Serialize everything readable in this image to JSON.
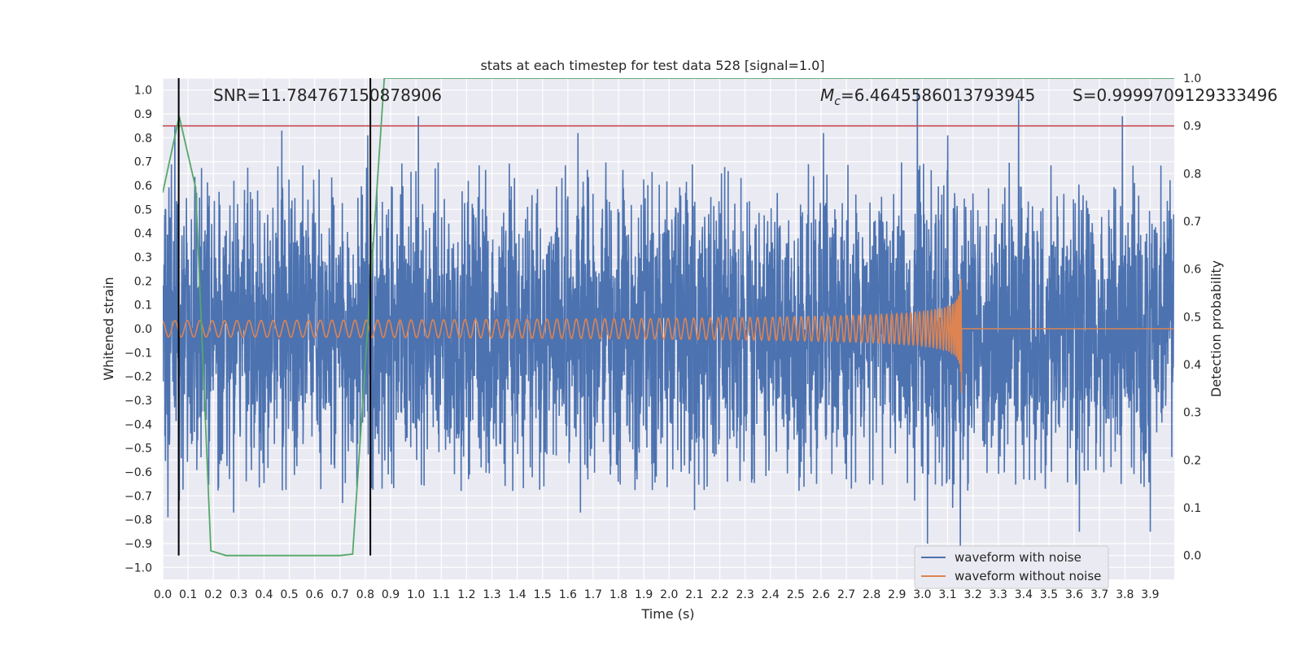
{
  "chart_data": {
    "type": "line",
    "title": "stats at each timestep for test data 528 [signal=1.0]",
    "xlabel": "Time (s)",
    "ylabel": "Whitened strain",
    "y2label": "Detection probability",
    "xlim": [
      0.0,
      3.995
    ],
    "ylim": [
      -1.05,
      1.05
    ],
    "y2lim": [
      -0.05,
      1.0
    ],
    "x_ticks": [
      "0.0",
      "0.1",
      "0.2",
      "0.3",
      "0.4",
      "0.5",
      "0.6",
      "0.7",
      "0.8",
      "0.9",
      "1.0",
      "1.1",
      "1.2",
      "1.3",
      "1.4",
      "1.5",
      "1.6",
      "1.7",
      "1.8",
      "1.9",
      "2.0",
      "2.1",
      "2.2",
      "2.3",
      "2.4",
      "2.5",
      "2.6",
      "2.7",
      "2.8",
      "2.9",
      "3.0",
      "3.1",
      "3.2",
      "3.3",
      "3.4",
      "3.5",
      "3.6",
      "3.7",
      "3.8",
      "3.9"
    ],
    "y_ticks": [
      "1.0",
      "0.9",
      "0.8",
      "0.7",
      "0.6",
      "0.5",
      "0.4",
      "0.3",
      "0.2",
      "0.1",
      "0.0",
      "−0.1",
      "−0.2",
      "−0.3",
      "−0.4",
      "−0.5",
      "−0.6",
      "−0.7",
      "−0.8",
      "−0.9",
      "−1.0"
    ],
    "y2_ticks": [
      "1.0",
      "0.9",
      "0.8",
      "0.7",
      "0.6",
      "0.5",
      "0.4",
      "0.3",
      "0.2",
      "0.1",
      "0.0"
    ],
    "grid": true,
    "legend_position": "lower-right",
    "annotations": {
      "snr": "SNR=11.784767150878906",
      "mc_symbol": "M",
      "mc_sub": "c",
      "mc_value": "=6.4645586013793945",
      "s": "S=0.9999709129333496"
    },
    "series": [
      {
        "name": "waveform with noise",
        "color": "#4c72b0",
        "noise_amplitude": 0.3,
        "peak_times": [
          0.048,
          0.47,
          0.81,
          1.01,
          1.64,
          2.61,
          2.98,
          3.1,
          3.38,
          3.79
        ],
        "peak_values": [
          0.85,
          0.83,
          0.81,
          0.89,
          0.82,
          0.82,
          1.0,
          0.81,
          0.96,
          0.89
        ],
        "trough_times": [
          0.02,
          0.065,
          0.28,
          0.71,
          1.65,
          2.1,
          2.97,
          3.02,
          3.12,
          3.15,
          3.62,
          3.9
        ],
        "trough_values": [
          -0.79,
          -0.72,
          -0.77,
          -0.73,
          -0.77,
          -0.76,
          -0.72,
          -0.9,
          -0.75,
          -0.97,
          -0.85,
          -0.85
        ]
      },
      {
        "name": "waveform without noise",
        "color": "#dd8452",
        "merger_time": 3.155,
        "amplitude_start": 0.034,
        "amplitude_peak": 0.33,
        "frequency_start_hz": 20,
        "frequency_peak_hz": 150,
        "post_merger_offset": 0.0
      },
      {
        "name": "detection probability",
        "color": "#55a868",
        "axis": "secondary",
        "x": [
          0.0,
          0.065,
          0.13,
          0.19,
          0.25,
          0.5,
          0.7,
          0.75,
          0.875,
          3.995
        ],
        "y": [
          0.76,
          0.92,
          0.77,
          0.01,
          0.0,
          0.0,
          0.0,
          0.003,
          1.0,
          1.0
        ]
      }
    ],
    "hlines": [
      {
        "y": 0.9,
        "axis": "secondary",
        "color": "#c44e52"
      }
    ],
    "vlines": [
      {
        "x": 0.063,
        "color": "#000000"
      },
      {
        "x": 0.82,
        "color": "#000000"
      }
    ]
  }
}
